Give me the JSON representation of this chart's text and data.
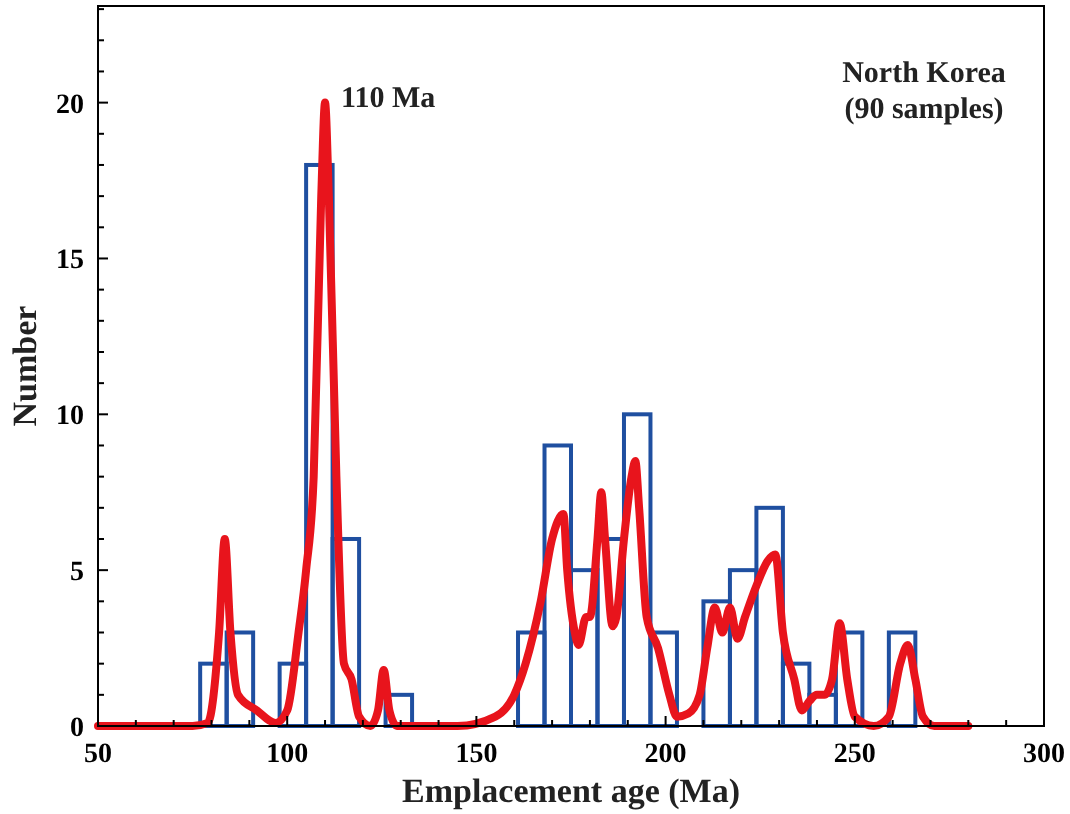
{
  "chart_data": {
    "type": "histogram",
    "xlabel": "Emplacement age (Ma)",
    "ylabel": "Number",
    "bins": [
      77,
      84,
      91,
      98,
      105,
      112,
      119,
      126,
      133,
      140,
      147,
      154,
      161,
      168,
      175,
      182,
      189,
      196,
      203,
      210,
      217,
      224,
      231,
      238,
      245,
      252,
      259,
      266
    ],
    "values": [
      2,
      3,
      0,
      2,
      18,
      6,
      0,
      1,
      0,
      0,
      0,
      0,
      3,
      9,
      5,
      6,
      10,
      3,
      0,
      4,
      5,
      7,
      2,
      1,
      3,
      0,
      3
    ],
    "color": "#1f4fa0",
    "series": [
      {
        "type": "line",
        "color": "#e8141c",
        "x": [
          50,
          75,
          79,
          82,
          83.5,
          85,
          87,
          92,
          97,
          100,
          103,
          105,
          107,
          109,
          110,
          111,
          113,
          115,
          117,
          119,
          122,
          124,
          125.5,
          127,
          129,
          145,
          155,
          160,
          163,
          167,
          170,
          173,
          174,
          176,
          177,
          179,
          180,
          182,
          183,
          184,
          186,
          187,
          189,
          191,
          192,
          193,
          195,
          198,
          201,
          203,
          206,
          209,
          211,
          213,
          215,
          217,
          219,
          221,
          224,
          227,
          229,
          231,
          234,
          236,
          238,
          240,
          242,
          244,
          246,
          248,
          250,
          255,
          259,
          262,
          264,
          266,
          268,
          271,
          280
        ],
        "values": [
          0,
          0,
          0.1,
          3,
          6,
          3,
          1,
          0.5,
          0.1,
          0.5,
          3,
          5,
          8,
          17,
          20,
          17,
          8,
          2,
          1.5,
          0.3,
          0,
          0.5,
          1.8,
          0.5,
          0,
          0,
          0.3,
          1,
          2,
          4,
          6,
          6.8,
          5,
          3,
          2.6,
          3.5,
          3.5,
          6,
          7.5,
          6,
          3.2,
          3.5,
          6,
          8,
          8.5,
          7,
          3.5,
          2.5,
          1,
          0.3,
          0.4,
          1,
          2.5,
          3.8,
          3,
          3.8,
          2.8,
          3.5,
          4.5,
          5.3,
          5.5,
          3,
          1.5,
          0.5,
          0.8,
          1,
          1,
          1.5,
          3.3,
          1.5,
          0.3,
          0,
          0.3,
          2,
          2.6,
          1.5,
          0.3,
          0,
          0
        ]
      }
    ],
    "xlim": [
      50,
      300
    ],
    "ylim": [
      0,
      23.1
    ],
    "xticks": [
      50,
      {
        "value": 60,
        "label": null
      },
      {
        "value": 70,
        "label": null
      },
      {
        "value": 80,
        "label": null
      },
      {
        "value": 90,
        "label": null
      },
      100,
      {
        "value": 110,
        "label": null
      },
      {
        "value": 120,
        "label": null
      },
      {
        "value": 130,
        "label": null
      },
      {
        "value": 140,
        "label": null
      },
      150,
      {
        "value": 160,
        "label": null
      },
      {
        "value": 170,
        "label": null
      },
      {
        "value": 180,
        "label": null
      },
      {
        "value": 190,
        "label": null
      },
      200,
      {
        "value": 210,
        "label": null
      },
      {
        "value": 220,
        "label": null
      },
      {
        "value": 230,
        "label": null
      },
      {
        "value": 240,
        "label": null
      },
      250,
      {
        "value": 260,
        "label": null
      },
      {
        "value": 270,
        "label": null
      },
      {
        "value": 280,
        "label": null
      },
      {
        "value": 290,
        "label": null
      },
      300
    ],
    "yticks": [
      0,
      {
        "value": 1,
        "label": null
      },
      {
        "value": 2,
        "label": null
      },
      {
        "value": 3,
        "label": null
      },
      {
        "value": 4,
        "label": null
      },
      5,
      {
        "value": 6,
        "label": null
      },
      {
        "value": 7,
        "label": null
      },
      {
        "value": 8,
        "label": null
      },
      {
        "value": 9,
        "label": null
      },
      10,
      {
        "value": 11,
        "label": null
      },
      {
        "value": 12,
        "label": null
      },
      {
        "value": 13,
        "label": null
      },
      {
        "value": 14,
        "label": null
      },
      15,
      {
        "value": 16,
        "label": null
      },
      {
        "value": 17,
        "label": null
      },
      {
        "value": 18,
        "label": null
      },
      {
        "value": 19,
        "label": null
      },
      20,
      {
        "value": 21,
        "label": null
      },
      {
        "value": 22,
        "label": null
      },
      {
        "value": 23,
        "label": null
      }
    ],
    "annotations": [
      {
        "text": "110 Ma",
        "x": 110,
        "y": 20
      },
      "North Korea\n(90 samples)"
    ]
  }
}
